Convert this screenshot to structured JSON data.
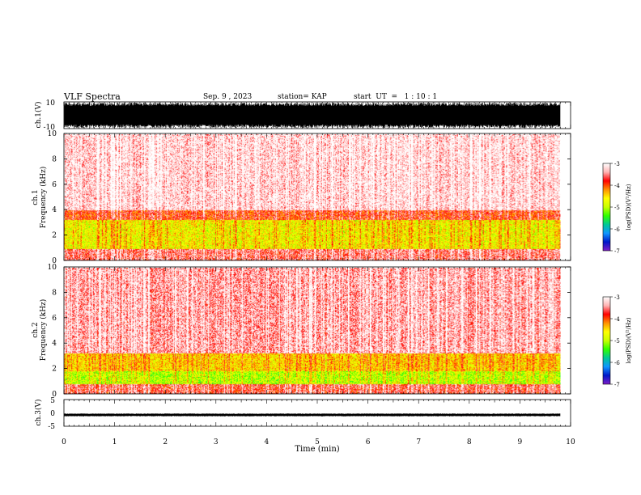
{
  "header": {
    "title": "VLF Spectra",
    "date": "Sep. 9 , 2023",
    "station": "station= KAP",
    "start": "start  UT  =   1 : 10 : 1"
  },
  "colors": {
    "colorbar_stops": [
      "#7f1ec8",
      "#0018c8",
      "#1096ff",
      "#00c896",
      "#30ff00",
      "#c8ff00",
      "#ffff00",
      "#ff9000",
      "#ff0000",
      "#ffb4b4",
      "#ffffff"
    ],
    "waveform": "#000000"
  },
  "chart_data": [
    {
      "type": "line",
      "ylabel": "ch.1(V)",
      "ylim": [
        -10,
        10
      ],
      "yticks": [
        "10",
        "-10"
      ],
      "xlim": [
        0,
        10
      ],
      "series": [
        {
          "amplitude_typical": [
            -7,
            7
          ]
        }
      ]
    },
    {
      "type": "heatmap",
      "ylabel_channel": "ch.1",
      "ylabel": "Frequency  (kHz)",
      "ylim": [
        0,
        10
      ],
      "yticks": [
        "0",
        "2",
        "4",
        "6",
        "8",
        "10"
      ],
      "xlim": [
        0,
        10
      ],
      "data_duration_min": 9.8,
      "bands": [
        {
          "from_khz": 0,
          "to_khz": 0.9,
          "level": -3.6
        },
        {
          "from_khz": 0.9,
          "to_khz": 3.2,
          "level": -4.7
        },
        {
          "from_khz": 3.2,
          "to_khz": 4.0,
          "level": -3.9
        },
        {
          "from_khz": 4.0,
          "to_khz": 10,
          "level": -3.2
        }
      ],
      "colorbar": {
        "label": "log(PSD)(V²/Hz)",
        "range": [
          -7,
          -3
        ],
        "ticks": [
          "-3",
          "-4",
          "-5",
          "-6",
          "-7"
        ]
      }
    },
    {
      "type": "heatmap",
      "ylabel_channel": "ch.2",
      "ylabel": "Frequency  (kHz)",
      "ylim": [
        0,
        10
      ],
      "yticks": [
        "0",
        "2",
        "4",
        "6",
        "8",
        "10"
      ],
      "xlim": [
        0,
        10
      ],
      "data_duration_min": 9.8,
      "bands": [
        {
          "from_khz": 0,
          "to_khz": 0.8,
          "level": -3.7
        },
        {
          "from_khz": 0.8,
          "to_khz": 1.8,
          "level": -5.0
        },
        {
          "from_khz": 1.8,
          "to_khz": 3.2,
          "level": -4.5
        },
        {
          "from_khz": 3.2,
          "to_khz": 10,
          "level": -3.4
        }
      ],
      "colorbar": {
        "label": "log(PSD)(V²/Hz)",
        "range": [
          -7,
          -3
        ],
        "ticks": [
          "-3",
          "-4",
          "-5",
          "-6",
          "-7"
        ]
      }
    },
    {
      "type": "line",
      "ylabel": "ch.3(V)",
      "ylim": [
        -5,
        5
      ],
      "yticks": [
        "5",
        "0",
        "-5"
      ],
      "xlim": [
        0,
        10
      ],
      "xlabel": "Time  (min)",
      "xticks": [
        "0",
        "1",
        "2",
        "3",
        "4",
        "5",
        "6",
        "7",
        "8",
        "9",
        "10"
      ],
      "series": [
        {
          "amplitude_typical": [
            -1.1,
            -0.4
          ]
        }
      ]
    }
  ]
}
